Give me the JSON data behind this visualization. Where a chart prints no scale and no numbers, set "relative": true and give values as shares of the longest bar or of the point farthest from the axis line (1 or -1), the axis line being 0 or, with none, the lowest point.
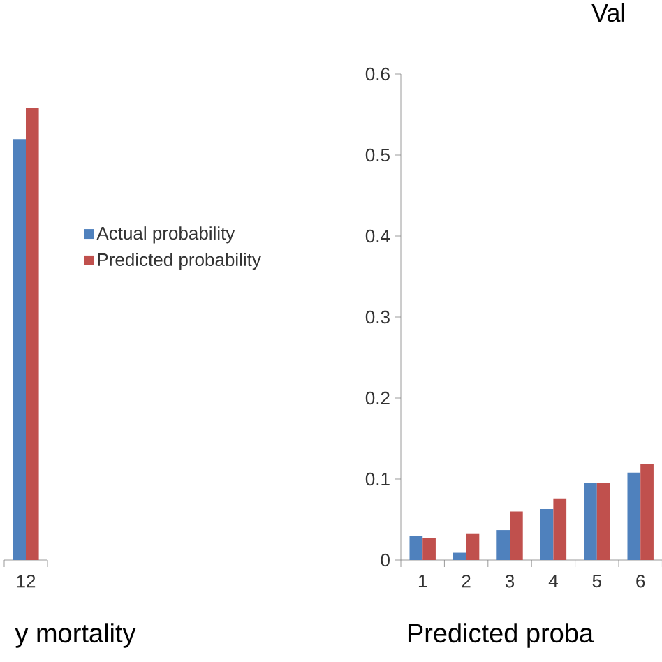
{
  "chart_data": [
    {
      "type": "bar",
      "relative": true,
      "xlabel": "y mortality",
      "categories": [
        "12"
      ],
      "legend": "right",
      "series": [
        {
          "name": "Actual probability",
          "color": "#4f81bd",
          "values": [
            0.93
          ]
        },
        {
          "name": "Predicted probability",
          "color": "#c0504d",
          "values": [
            1
          ]
        }
      ]
    },
    {
      "type": "bar",
      "title": "Val",
      "xlabel": "Predicted proba",
      "categories": [
        "1",
        "2",
        "3",
        "4",
        "5",
        "6"
      ],
      "ylim": [
        0,
        0.6
      ],
      "yticks": [
        0,
        0.1,
        0.2,
        0.3,
        0.4,
        0.5,
        0.6
      ],
      "legend": false,
      "series": [
        {
          "color": "#4f81bd",
          "values": [
            0.03,
            0.009,
            0.037,
            0.063,
            0.095,
            0.108
          ]
        },
        {
          "color": "#c0504d",
          "values": [
            0.027,
            0.033,
            0.06,
            0.076,
            0.095,
            0.119
          ]
        }
      ]
    }
  ]
}
